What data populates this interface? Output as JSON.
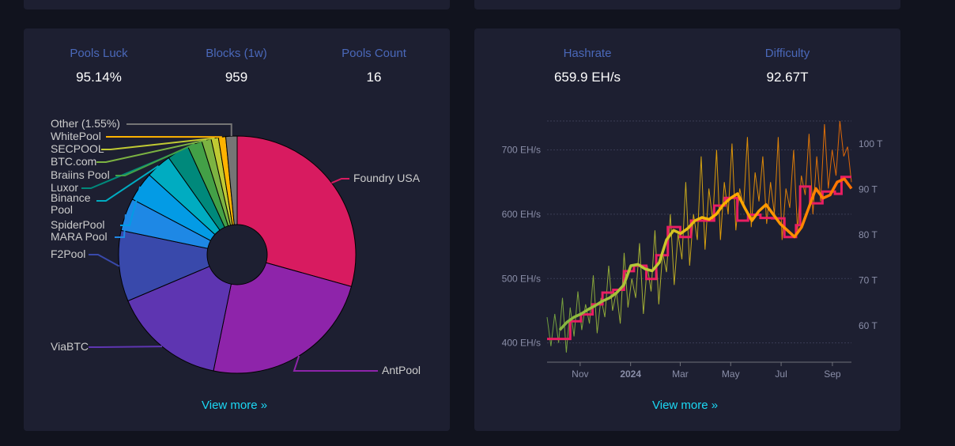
{
  "pools_card": {
    "stats": [
      {
        "label": "Pools Luck",
        "value": "95.14%"
      },
      {
        "label": "Blocks (1w)",
        "value": "959"
      },
      {
        "label": "Pools Count",
        "value": "16"
      }
    ],
    "view_more": "View more »"
  },
  "hashrate_card": {
    "stats": [
      {
        "label": "Hashrate",
        "value": "659.9 EH/s"
      },
      {
        "label": "Difficulty",
        "value": "92.67T"
      }
    ],
    "view_more": "View more »"
  },
  "chart_data": [
    {
      "type": "pie",
      "donut": true,
      "slices": [
        {
          "name": "Foundry USA",
          "value": 29.5,
          "color": "#d81b60"
        },
        {
          "name": "AntPool",
          "value": 24.0,
          "color": "#8e24aa"
        },
        {
          "name": "ViaBTC",
          "value": 15.5,
          "color": "#5e35b1"
        },
        {
          "name": "F2Pool",
          "value": 9.7,
          "color": "#3949ab"
        },
        {
          "name": "MARA Pool",
          "value": 4.5,
          "color": "#1e88e5"
        },
        {
          "name": "SpiderPool",
          "value": 4.0,
          "color": "#039be5"
        },
        {
          "name": "Binance Pool",
          "value": 3.5,
          "color": "#00acc1"
        },
        {
          "name": "Luxor",
          "value": 3.0,
          "color": "#00897b"
        },
        {
          "name": "Braiins Pool",
          "value": 2.0,
          "color": "#43a047"
        },
        {
          "name": "BTC.com",
          "value": 1.3,
          "color": "#7cb342"
        },
        {
          "name": "SECPOOL",
          "value": 1.0,
          "color": "#c0ca33"
        },
        {
          "name": "WhitePool",
          "value": 1.0,
          "color": "#ffb300"
        },
        {
          "name": "Other (1.55%)",
          "value": 1.55,
          "color": "#757575"
        }
      ]
    },
    {
      "type": "line",
      "x_range": [
        "2023-09-22",
        "2024-09-24"
      ],
      "x_ticks": [
        "Nov",
        "2024",
        "Mar",
        "May",
        "Jul",
        "Sep"
      ],
      "y_left": {
        "ticks": [
          "400 EH/s",
          "500 EH/s",
          "600 EH/s",
          "700 EH/s"
        ],
        "range": [
          370,
          745
        ]
      },
      "y_right": {
        "ticks": [
          "60 T",
          "70 T",
          "80 T",
          "90 T",
          "100 T"
        ],
        "range": [
          52,
          105
        ]
      },
      "grid": true,
      "hashrate_daily": [
        440,
        395,
        445,
        400,
        470,
        385,
        455,
        410,
        480,
        420,
        460,
        430,
        505,
        415,
        470,
        440,
        520,
        450,
        480,
        430,
        540,
        455,
        500,
        470,
        555,
        445,
        520,
        480,
        575,
        460,
        540,
        510,
        600,
        490,
        570,
        530,
        650,
        520,
        600,
        560,
        690,
        545,
        640,
        590,
        700,
        560,
        650,
        600,
        710,
        575,
        640,
        610,
        720,
        580,
        665,
        620,
        690,
        585,
        650,
        600,
        720,
        560,
        640,
        610,
        700,
        575,
        660,
        630,
        725,
        600,
        690,
        620,
        740,
        640,
        700,
        660,
        745,
        690,
        705,
        650
      ],
      "hashrate_ma": [
        420,
        432,
        440,
        445,
        452,
        458,
        465,
        470,
        478,
        490,
        520,
        522,
        515,
        512,
        525,
        560,
        575,
        570,
        578,
        590,
        595,
        592,
        600,
        615,
        625,
        632,
        610,
        590,
        605,
        615,
        600,
        585,
        575,
        565,
        580,
        610,
        640,
        625,
        630,
        650,
        655,
        640
      ],
      "difficulty": [
        [
          "2023-09-22",
          57.1
        ],
        [
          "2023-10-20",
          61.0
        ],
        [
          "2023-11-02",
          62.5
        ],
        [
          "2023-11-16",
          64.7
        ],
        [
          "2023-11-28",
          67.3
        ],
        [
          "2023-12-11",
          67.9
        ],
        [
          "2023-12-24",
          72.0
        ],
        [
          "2024-01-05",
          73.2
        ],
        [
          "2024-01-20",
          70.3
        ],
        [
          "2024-02-01",
          75.5
        ],
        [
          "2024-02-15",
          81.7
        ],
        [
          "2024-03-01",
          79.5
        ],
        [
          "2024-03-14",
          83.1
        ],
        [
          "2024-03-28",
          83.1
        ],
        [
          "2024-04-11",
          86.4
        ],
        [
          "2024-04-24",
          88.1
        ],
        [
          "2024-05-09",
          83.1
        ],
        [
          "2024-05-22",
          84.4
        ],
        [
          "2024-06-06",
          83.7
        ],
        [
          "2024-06-20",
          83.6
        ],
        [
          "2024-07-05",
          79.5
        ],
        [
          "2024-07-19",
          82.1
        ],
        [
          "2024-07-24",
          90.6
        ],
        [
          "2024-08-05",
          86.9
        ],
        [
          "2024-08-20",
          89.5
        ],
        [
          "2024-09-04",
          89.0
        ],
        [
          "2024-09-12",
          92.7
        ]
      ]
    }
  ]
}
